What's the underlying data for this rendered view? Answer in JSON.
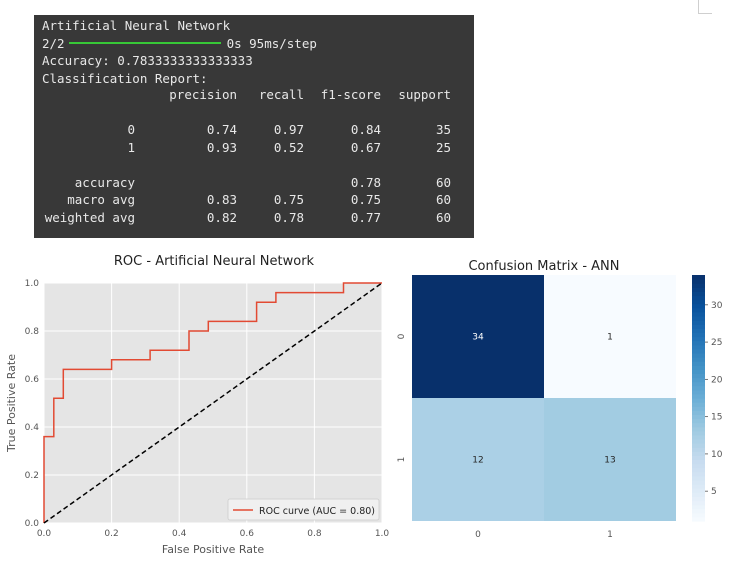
{
  "console": {
    "title_line": "Artificial Neural Network",
    "progress_count": "2/2",
    "progress_time": "0s 95ms/step",
    "accuracy_line": "Accuracy: 0.7833333333333333",
    "report_header": "Classification Report:",
    "columns": [
      "precision",
      "recall",
      "f1-score",
      "support"
    ],
    "rows": [
      {
        "label": "0",
        "values": [
          "0.74",
          "0.97",
          "0.84",
          "35"
        ]
      },
      {
        "label": "1",
        "values": [
          "0.93",
          "0.52",
          "0.67",
          "25"
        ]
      },
      {
        "label": "accuracy",
        "values": [
          "",
          "",
          "0.78",
          "60"
        ]
      },
      {
        "label": "macro avg",
        "values": [
          "0.83",
          "0.75",
          "0.75",
          "60"
        ]
      },
      {
        "label": "weighted avg",
        "values": [
          "0.82",
          "0.78",
          "0.77",
          "60"
        ]
      }
    ]
  },
  "chart_data": [
    {
      "type": "line",
      "title": "ROC - Artificial Neural Network",
      "xlabel": "False Positive Rate",
      "ylabel": "True Positive Rate",
      "xlim": [
        0,
        1
      ],
      "ylim": [
        0,
        1
      ],
      "xticks": [
        "0.0",
        "0.2",
        "0.4",
        "0.6",
        "0.8",
        "1.0"
      ],
      "yticks": [
        "0.0",
        "0.2",
        "0.4",
        "0.6",
        "0.8",
        "1.0"
      ],
      "grid": true,
      "legend_position": "lower-right",
      "series": [
        {
          "name": "ROC curve (AUC = 0.80)",
          "color": "#e24a33",
          "x": [
            0,
            0,
            0.029,
            0.029,
            0.057,
            0.057,
            0.2,
            0.2,
            0.314,
            0.314,
            0.429,
            0.429,
            0.486,
            0.486,
            0.629,
            0.629,
            0.686,
            0.686,
            0.886,
            0.886,
            1.0,
            1.0
          ],
          "y": [
            0,
            0.36,
            0.36,
            0.52,
            0.52,
            0.64,
            0.64,
            0.68,
            0.68,
            0.72,
            0.72,
            0.8,
            0.8,
            0.84,
            0.84,
            0.92,
            0.92,
            0.96,
            0.96,
            1.0,
            1.0,
            1.0
          ]
        },
        {
          "name": "",
          "color": "#000000",
          "dashed": true,
          "x": [
            0,
            1
          ],
          "y": [
            0,
            1
          ]
        }
      ]
    },
    {
      "type": "heatmap",
      "title": "Confusion Matrix - ANN",
      "x_categories": [
        "0",
        "1"
      ],
      "y_categories": [
        "0",
        "1"
      ],
      "values": [
        [
          34,
          1
        ],
        [
          12,
          13
        ]
      ],
      "colormap": "Blues",
      "colorbar_ticks": [
        5,
        10,
        15,
        20,
        25,
        30
      ],
      "vmin": 1,
      "vmax": 34
    }
  ]
}
